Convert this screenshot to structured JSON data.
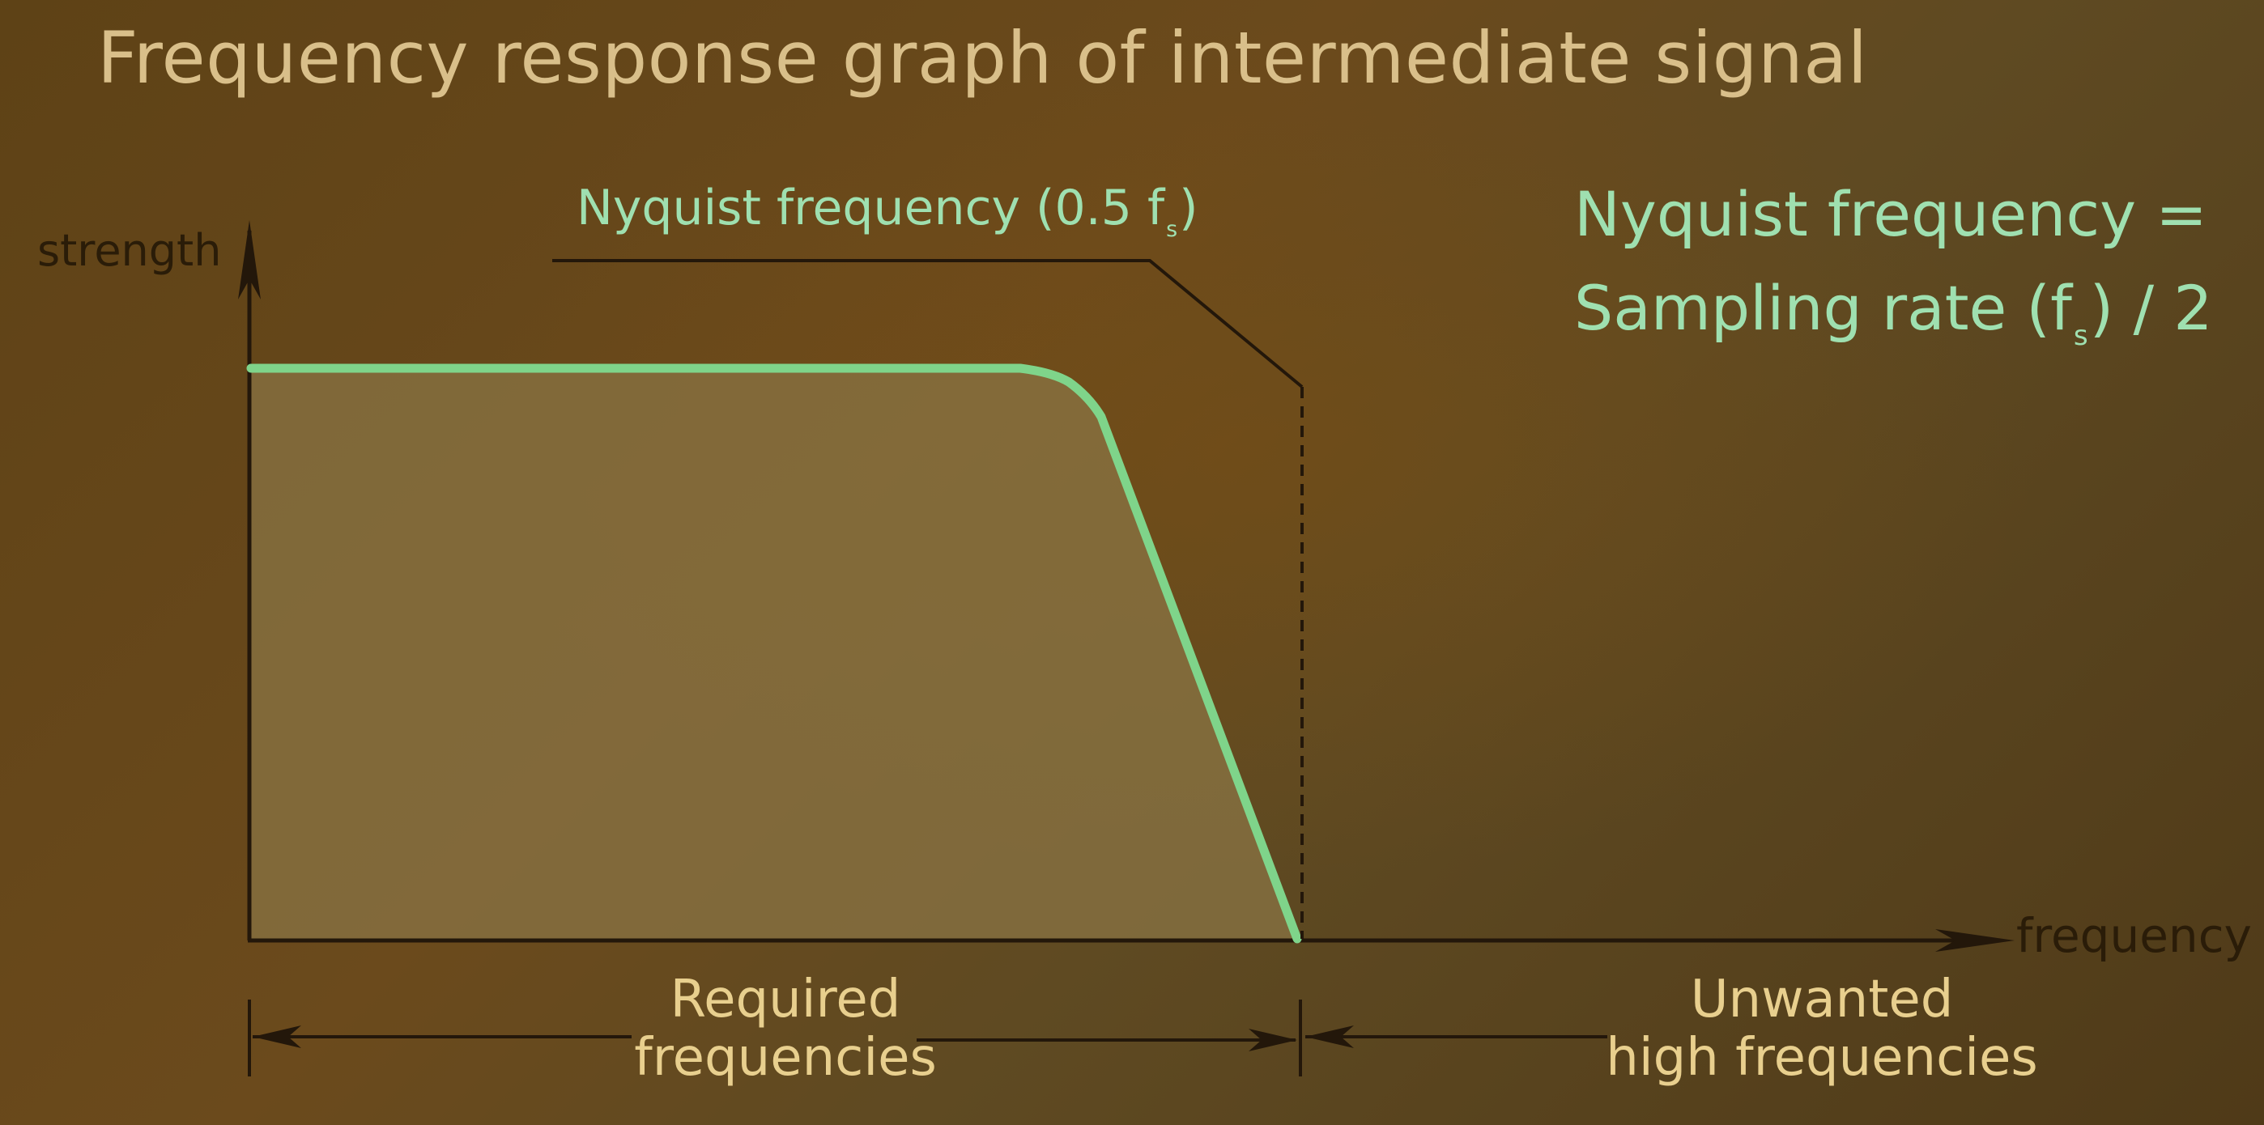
{
  "title": "Frequency response graph of intermediate signal",
  "axes": {
    "y_label": "strength",
    "x_label": "frequency"
  },
  "nyquist_callout": {
    "text": "Nyquist frequency (0.5 f",
    "subscript": "s",
    "close": ")"
  },
  "formula": {
    "line1": "Nyquist frequency =",
    "line2_pre": "Sampling rate (f",
    "line2_sub": "s",
    "line2_post": ") / 2"
  },
  "regions": {
    "required_line1": "Required",
    "required_line2": "frequencies",
    "unwanted_line1": "Unwanted",
    "unwanted_line2": "high frequencies"
  },
  "colors": {
    "curve": "#7fd48a",
    "axis": "#23170a",
    "fill": "#8a7444",
    "title": "#d9bf8a",
    "formula": "#9fe0b0",
    "region_label": "#e8cf8e"
  }
}
